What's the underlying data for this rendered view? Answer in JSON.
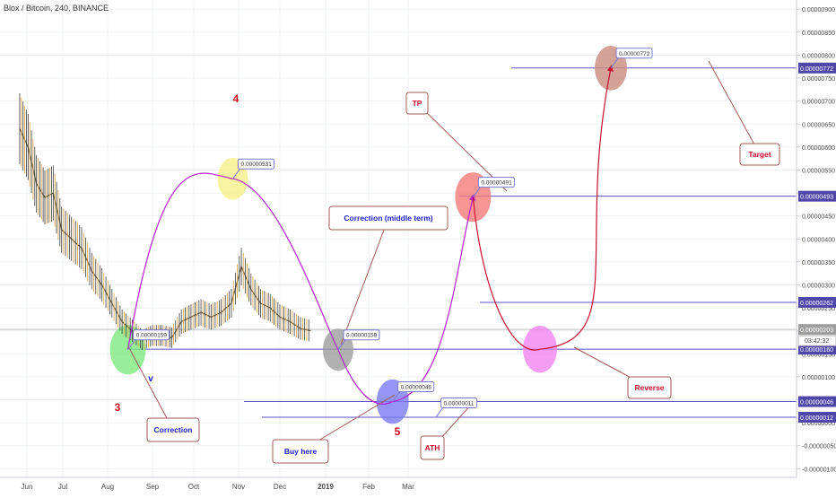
{
  "header": {
    "title": "Blox / Bitcoin, 240, BINANCE"
  },
  "clock": "03:42:32",
  "colors": {
    "grid": "#eef0f4",
    "hline": "#5b4fc4",
    "purple_curve": "#b21fd1",
    "red_curve": "#c8102e",
    "label_red": "#cc0a2b",
    "label_blue": "#1a1ad6",
    "wave_red": "#d0021b",
    "wave_blue": "#1a1ad6",
    "axis_text": "#4a4a4a",
    "badge_fill": "#4e46a8",
    "current_badge_fill": "#9e9e9e"
  },
  "chart_data": {
    "type": "line",
    "y_scale": "linear",
    "ylim": [
      -1.15e-06,
      9.2e-06
    ],
    "y_ticks": [
      "0.00000900",
      "0.00000850",
      "0.00000800",
      "0.00000750",
      "0.00000700",
      "0.00000650",
      "0.00000600",
      "0.00000550",
      "0.00000500",
      "0.00000450",
      "0.00000400",
      "0.00000350",
      "0.00000300",
      "0.00000250",
      "0.00000200",
      "0.00000150",
      "0.00000100",
      "0.00000050",
      "0.00000000",
      "-0.00000050",
      "-0.00000100"
    ],
    "x_ticks": [
      "Jun",
      "Jul",
      "Aug",
      "Sep",
      "Oct",
      "Nov",
      "Dec",
      "2019",
      "Feb",
      "Mar"
    ],
    "price_series": {
      "x": [
        "2018-05-26",
        "2018-06-02",
        "2018-06-09",
        "2018-06-16",
        "2018-06-23",
        "2018-06-30",
        "2018-07-07",
        "2018-07-14",
        "2018-07-21",
        "2018-07-28",
        "2018-08-04",
        "2018-08-11",
        "2018-08-18",
        "2018-08-25",
        "2018-09-01",
        "2018-09-08",
        "2018-09-15",
        "2018-09-22",
        "2018-09-29",
        "2018-10-06",
        "2018-10-13",
        "2018-10-20",
        "2018-10-27",
        "2018-11-03",
        "2018-11-10",
        "2018-11-17",
        "2018-11-24",
        "2018-12-01",
        "2018-12-08",
        "2018-12-15",
        "2018-12-22"
      ],
      "close": [
        6.4e-06,
        6e-06,
        5.2e-06,
        4.9e-06,
        5e-06,
        4.2e-06,
        4e-06,
        3.8e-06,
        3.3e-06,
        3e-06,
        2.6e-06,
        2.2e-06,
        2e-06,
        1.8e-06,
        1.9e-06,
        1.9e-06,
        1.85e-06,
        2.2e-06,
        2.3e-06,
        2.4e-06,
        2.3e-06,
        2.4e-06,
        2.6e-06,
        3.4e-06,
        2.9e-06,
        2.6e-06,
        2.5e-06,
        2.3e-06,
        2.2e-06,
        2.05e-06,
        2e-06
      ]
    },
    "horizontal_levels": [
      {
        "value": 7.72e-06,
        "label": "0.00000772"
      },
      {
        "value": 4.93e-06,
        "label": "0.00000493"
      },
      {
        "value": 2.62e-06,
        "label": "0.00000262"
      },
      {
        "value": 1.6e-06,
        "label": "0.00000160"
      },
      {
        "value": 4.6e-07,
        "label": "0.00000046"
      },
      {
        "value": 1.2e-07,
        "label": "0.00000012"
      }
    ],
    "current_price": {
      "value": 2.03e-06,
      "label": "0.00000203"
    },
    "projection_points": [
      {
        "x": "2018-08-15",
        "y": 1.59e-06,
        "label": "0.00000159",
        "circle_color": "#7ee87e"
      },
      {
        "x": "2018-10-28",
        "y": 5.31e-06,
        "label": "0.00000531",
        "circle_color": "#f5f08a"
      },
      {
        "x": "2019-01-10",
        "y": 1.59e-06,
        "label": "0.00000159",
        "circle_color": "#9e9e9e"
      },
      {
        "x": "2019-02-18",
        "y": 4.6e-07,
        "label": "0.00000046",
        "circle_color": "#7b7bf2"
      },
      {
        "x": "2019-04-15",
        "y": 4.91e-06,
        "label": "0.00000491",
        "circle_color": "#f57a7a"
      },
      {
        "x": "2019-06-01",
        "y": 1.6e-06,
        "label": "",
        "circle_color": "#f285f2"
      },
      {
        "x": "2019-07-20",
        "y": 7.72e-06,
        "label": "0.00000772",
        "circle_color": "#c98b7c"
      }
    ],
    "price_tag_ath": {
      "x": "2019-03-20",
      "y": 1.1e-07,
      "label": "0.00000011"
    },
    "annotations": [
      {
        "text": "Correction",
        "color": "#1a1ad6"
      },
      {
        "text": "Correction (middle term)",
        "color": "#1a1ad6"
      },
      {
        "text": "Buy here",
        "color": "#1a1ad6"
      },
      {
        "text": "ATH",
        "color": "#cc0a2b"
      },
      {
        "text": "TP",
        "color": "#cc0a2b"
      },
      {
        "text": "Reverse",
        "color": "#cc0a2b"
      },
      {
        "text": "Target",
        "color": "#cc0a2b"
      }
    ],
    "wave_labels": [
      {
        "text": "3",
        "color": "#d0021b"
      },
      {
        "text": "v",
        "color": "#1a1ad6"
      },
      {
        "text": "4",
        "color": "#d0021b"
      },
      {
        "text": "5",
        "color": "#d0021b"
      }
    ]
  }
}
